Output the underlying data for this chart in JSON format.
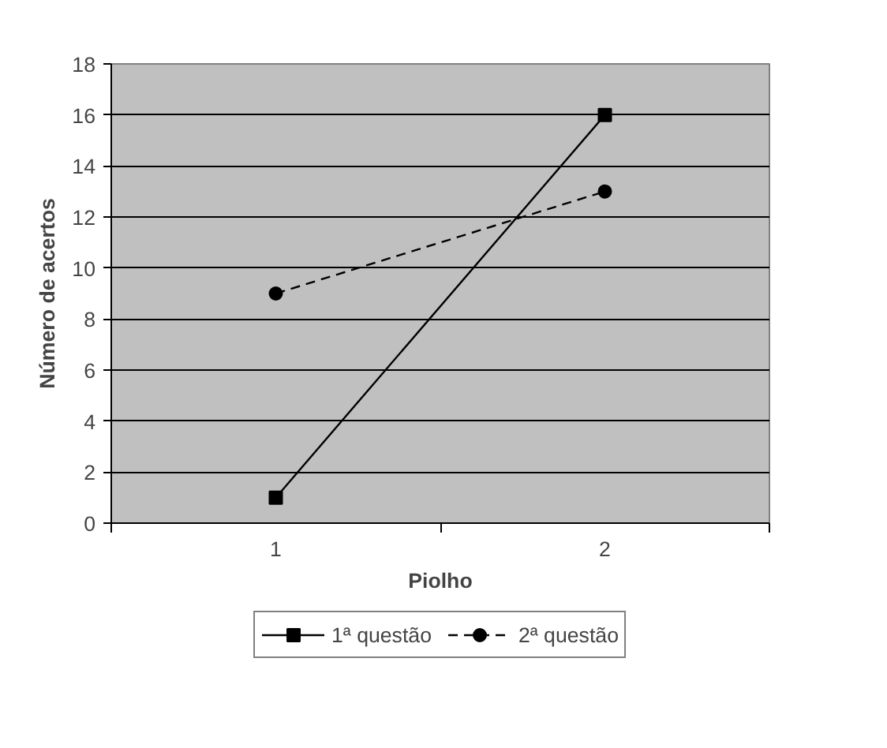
{
  "chart_data": {
    "type": "line",
    "xlabel": "Piolho",
    "ylabel": "Número de acertos",
    "categories": [
      "1",
      "2"
    ],
    "series": [
      {
        "name": "1ª questão",
        "color": "#000000",
        "values": [
          1,
          16
        ],
        "marker": "square",
        "line_style": "solid"
      },
      {
        "name": "2ª questão",
        "color": "#000000",
        "values": [
          9,
          13
        ],
        "marker": "circle",
        "line_style": "dashed"
      }
    ],
    "ylim": [
      0,
      18
    ],
    "yticks": [
      0,
      2,
      4,
      6,
      8,
      10,
      12,
      14,
      16,
      18
    ],
    "grid": "y",
    "legend": "bottom"
  }
}
